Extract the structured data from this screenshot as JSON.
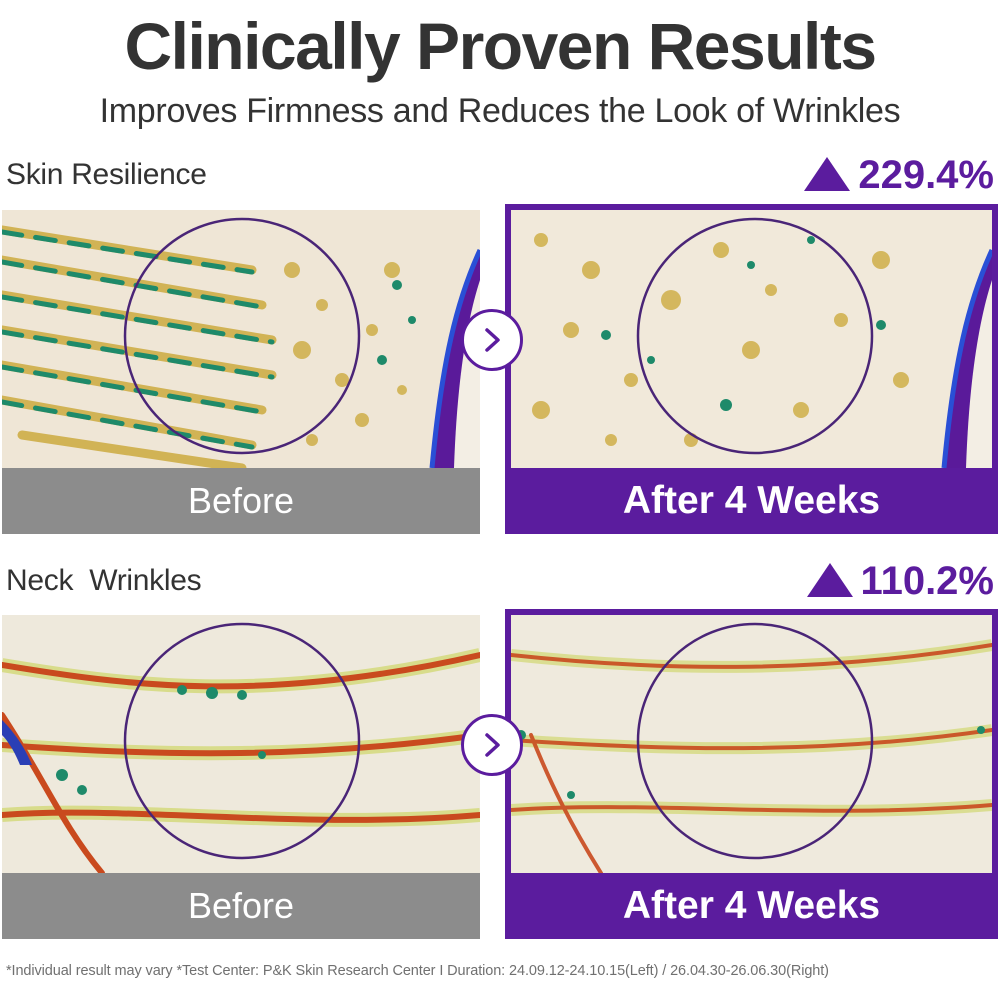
{
  "header": {
    "title": "Clinically Proven Results",
    "subtitle": "Improves Firmness and Reduces the Look of Wrinkles"
  },
  "sections": [
    {
      "label": "Skin Resilience",
      "stat": "229.4%",
      "stat_icon": "triangle-up-icon",
      "before_caption": "Before",
      "after_caption": "After 4 Weeks"
    },
    {
      "label": "Neck  Wrinkles",
      "stat": "110.2%",
      "stat_icon": "triangle-up-icon",
      "before_caption": "Before",
      "after_caption": "After 4 Weeks"
    }
  ],
  "footnote": "*Individual result may vary *Test Center: P&K Skin Research Center I Duration: 24.09.12-24.10.15(Left) / 26.04.30-26.06.30(Right)",
  "colors": {
    "accent": "#5b1c9e",
    "before_bar": "#8c8c8c",
    "text": "#333333"
  }
}
